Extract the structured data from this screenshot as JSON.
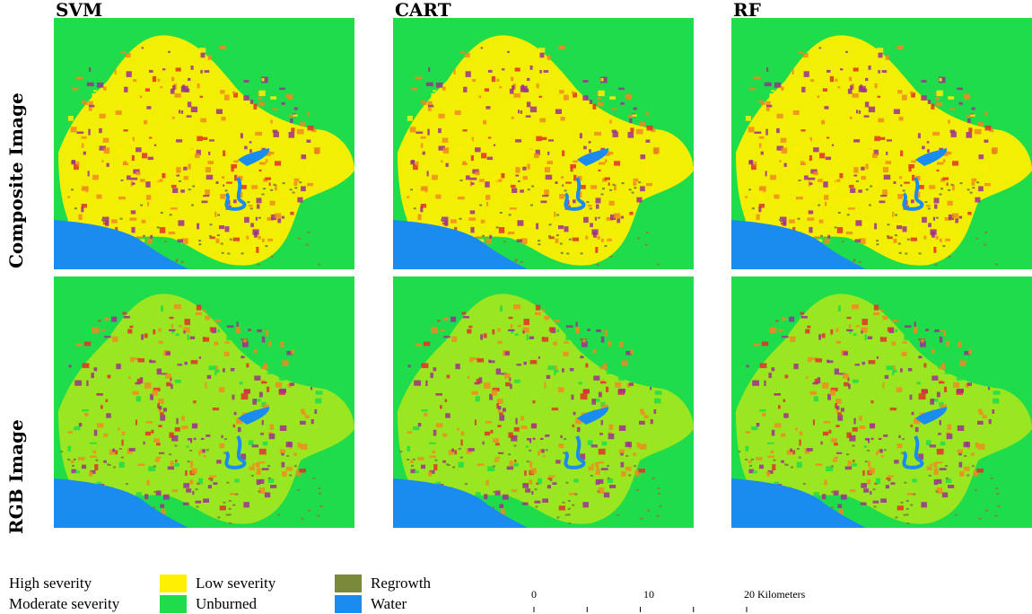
{
  "columns": [
    "SVM",
    "CART",
    "RF"
  ],
  "rows": [
    "Composite Image",
    "RGB Image"
  ],
  "legend": [
    {
      "label": "High severity",
      "color": "#9b2f8f"
    },
    {
      "label": "Moderate severity",
      "color": "#f08a1e"
    },
    {
      "label": "Low severity",
      "color": "#ffef00"
    },
    {
      "label": "Unburned",
      "color": "#1fdc4a"
    },
    {
      "label": "Regrowth",
      "color": "#7a8a3a"
    },
    {
      "label": "Water",
      "color": "#1a8cf0"
    }
  ],
  "scale_bar": {
    "labels": [
      "0",
      "10",
      "20 Kilometers"
    ]
  }
}
